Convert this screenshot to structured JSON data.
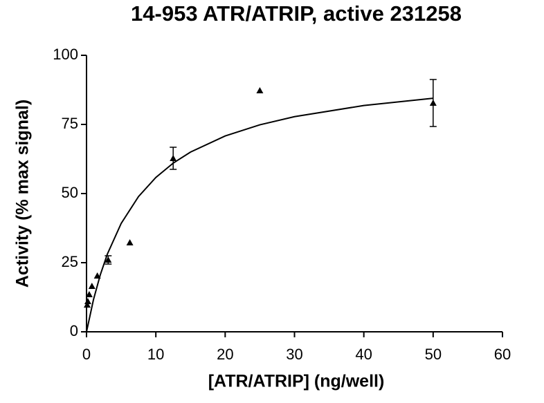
{
  "chart_data": {
    "type": "scatter",
    "title": "14-953 ATR/ATRIP, active  231258",
    "x_label": "[ATR/ATRIP] (ng/well)",
    "y_label": "Activity (% max signal)",
    "xlim": [
      0,
      60
    ],
    "ylim": [
      0,
      100
    ],
    "xticks": [
      0,
      10,
      20,
      30,
      40,
      50,
      60
    ],
    "yticks": [
      0,
      25,
      50,
      75,
      100
    ],
    "series": [
      {
        "color": "#000000",
        "marker": "triangle",
        "x": [
          0.098,
          0.195,
          0.39,
          0.78,
          1.5625,
          3.125,
          6.25,
          12.5,
          25,
          50
        ],
        "values": [
          9.75,
          11,
          13.5,
          16.5,
          20.25,
          26,
          32.25,
          62.75,
          87.25,
          82.75
        ],
        "errors": [
          null,
          null,
          null,
          null,
          null,
          1.5,
          null,
          4,
          null,
          8.5
        ]
      }
    ],
    "fit": {
      "color": "#000000",
      "x": [
        0,
        1,
        2,
        3,
        5,
        7.5,
        10,
        12.5,
        15,
        20,
        25,
        30,
        40,
        50
      ],
      "values": [
        0,
        11.59,
        20.71,
        28.06,
        39.2,
        48.91,
        55.82,
        60.99,
        65,
        70.83,
        74.86,
        77.81,
        81.84,
        84.48
      ]
    }
  }
}
